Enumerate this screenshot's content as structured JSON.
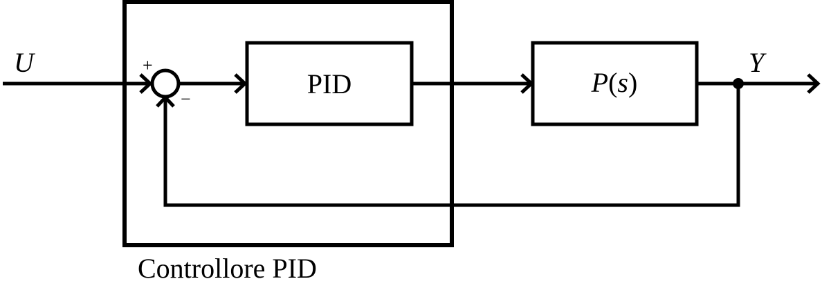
{
  "diagram": {
    "input_label": "U",
    "output_label": "Y",
    "plus_sign": "+",
    "minus_sign": "−",
    "pid_block_label": "PID",
    "plant_block": {
      "symbol": "P",
      "open_paren": "(",
      "variable": "s",
      "close_paren": ")"
    },
    "controller_caption": "Controllore PID"
  }
}
